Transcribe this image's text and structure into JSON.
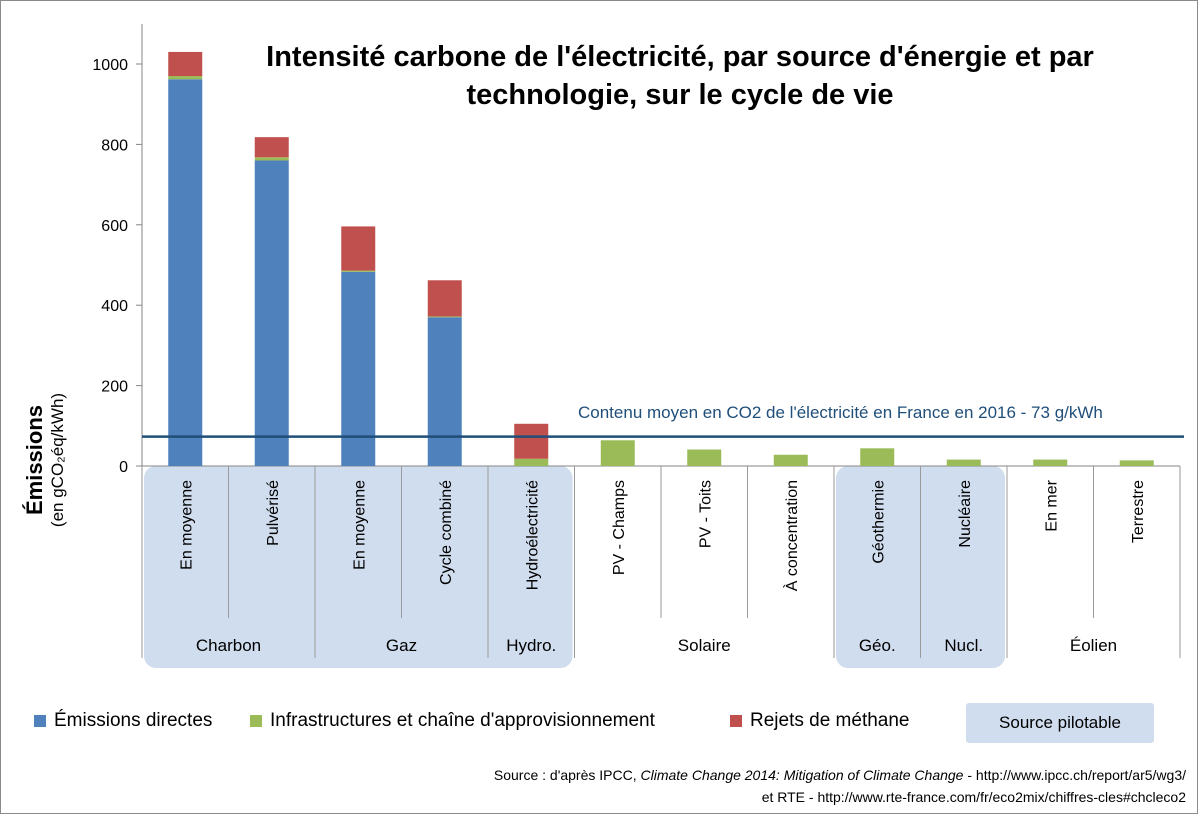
{
  "chart_data": {
    "type": "bar",
    "stacked": true,
    "title": "Intensité carbone de l'électricité, par source d'énergie et par technologie, sur le cycle de vie",
    "ylabel": "Émissions",
    "ylabel_sub": "(en gCO₂éq/kWh)",
    "ylim": [
      0,
      1100
    ],
    "yticks": [
      0,
      200,
      400,
      600,
      800,
      1000
    ],
    "categories": [
      "En moyenne",
      "Pulvérisé",
      "En moyenne",
      "Cycle combiné",
      "Hydroélectricité",
      "PV - Champs",
      "PV - Toits",
      "À concentration",
      "Géothermie",
      "Nucléaire",
      "En mer",
      "Terrestre"
    ],
    "groups": [
      {
        "label": "Charbon",
        "span": 2
      },
      {
        "label": "Gaz",
        "span": 2
      },
      {
        "label": "Hydro.",
        "span": 1
      },
      {
        "label": "Solaire",
        "span": 3
      },
      {
        "label": "Géo.",
        "span": 1
      },
      {
        "label": "Nucl.",
        "span": 1
      },
      {
        "label": "Éolien",
        "span": 2
      }
    ],
    "pilotable": [
      true,
      true,
      true,
      true,
      true,
      false,
      false,
      false,
      true,
      true,
      false,
      false
    ],
    "series": [
      {
        "name": "Émissions directes",
        "color": "#4f81bd",
        "values": [
          962,
          760,
          483,
          370,
          0,
          0,
          0,
          0,
          0,
          0,
          0,
          0
        ]
      },
      {
        "name": "Infrastructures et chaîne d'approvisionnement",
        "color": "#9bbb59",
        "values": [
          8,
          8,
          3,
          2,
          18,
          64,
          41,
          28,
          44,
          16,
          16,
          14
        ]
      },
      {
        "name": "Rejets de méthane",
        "color": "#c0504d",
        "values": [
          60,
          50,
          110,
          90,
          87,
          0,
          0,
          0,
          0,
          0,
          0,
          0
        ]
      }
    ],
    "reference_line": {
      "value": 73,
      "label": "Contenu moyen en CO2 de l'électricité en France en 2016 - 73 g/kWh",
      "color": "#1f4e79"
    },
    "legend_extra": "Source pilotable",
    "pilotable_color": "#d0ddee",
    "grid": false,
    "legend_position": "bottom"
  },
  "source": {
    "line1_pre": "Source : d'après IPCC, ",
    "line1_italic": "Climate Change 2014: Mitigation of Climate Change",
    "line1_post": " - http://www.ipcc.ch/report/ar5/wg3/",
    "line2": "et RTE - http://www.rte-france.com/fr/eco2mix/chiffres-cles#chcleco2"
  }
}
